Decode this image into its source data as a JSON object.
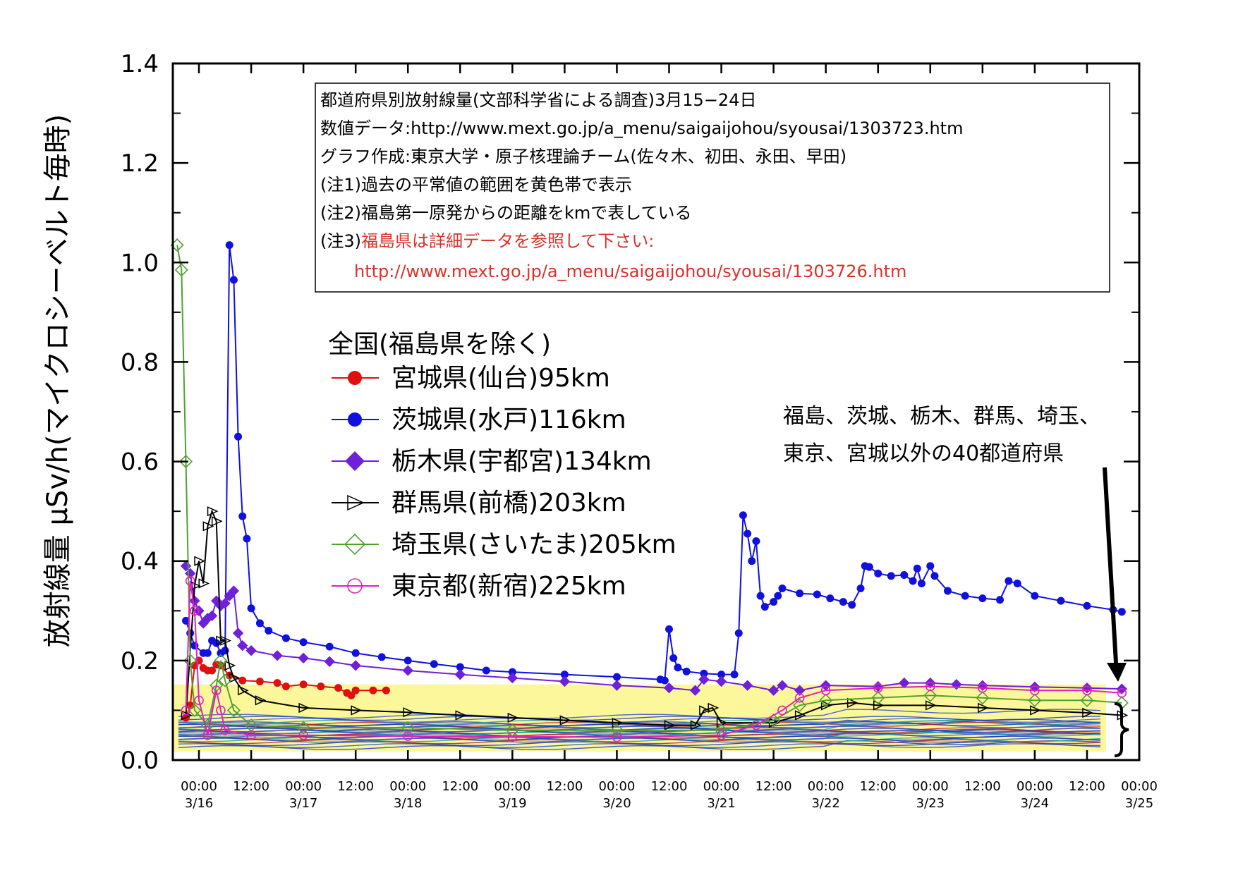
{
  "chart_data": {
    "type": "line",
    "ylabel": "放射線量 μSv/h(マイクロシーベルト毎時)",
    "ylim": [
      0,
      1.4
    ],
    "yticks": [
      "0.0",
      "0.2",
      "0.4",
      "0.6",
      "0.8",
      "1.0",
      "1.2",
      "1.4"
    ],
    "xlim": [
      "2011-03-15T18:00",
      "2011-03-25T00:00"
    ],
    "xticks": [
      {
        "t": "2011-03-16T00:00",
        "time": "00:00",
        "date": "3/16"
      },
      {
        "t": "2011-03-16T12:00",
        "time": "12:00",
        "date": ""
      },
      {
        "t": "2011-03-17T00:00",
        "time": "00:00",
        "date": "3/17"
      },
      {
        "t": "2011-03-17T12:00",
        "time": "12:00",
        "date": ""
      },
      {
        "t": "2011-03-18T00:00",
        "time": "00:00",
        "date": "3/18"
      },
      {
        "t": "2011-03-18T12:00",
        "time": "12:00",
        "date": ""
      },
      {
        "t": "2011-03-19T00:00",
        "time": "00:00",
        "date": "3/19"
      },
      {
        "t": "2011-03-19T12:00",
        "time": "12:00",
        "date": ""
      },
      {
        "t": "2011-03-20T00:00",
        "time": "00:00",
        "date": "3/20"
      },
      {
        "t": "2011-03-20T12:00",
        "time": "12:00",
        "date": ""
      },
      {
        "t": "2011-03-21T00:00",
        "time": "00:00",
        "date": "3/21"
      },
      {
        "t": "2011-03-21T12:00",
        "time": "12:00",
        "date": ""
      },
      {
        "t": "2011-03-22T00:00",
        "time": "00:00",
        "date": "3/22"
      },
      {
        "t": "2011-03-22T12:00",
        "time": "12:00",
        "date": ""
      },
      {
        "t": "2011-03-23T00:00",
        "time": "00:00",
        "date": "3/23"
      },
      {
        "t": "2011-03-23T12:00",
        "time": "12:00",
        "date": ""
      },
      {
        "t": "2011-03-24T00:00",
        "time": "00:00",
        "date": "3/24"
      },
      {
        "t": "2011-03-24T12:00",
        "time": "12:00",
        "date": ""
      },
      {
        "t": "2011-03-25T00:00",
        "time": "00:00",
        "date": "3/25"
      }
    ],
    "normal_band": {
      "ymin": 0.017,
      "ymax": 0.152,
      "color": "#fbf79a"
    },
    "info_box": {
      "lines": [
        "都道府県別放射線量(文部科学省による調査)3月15−24日",
        "数値データ:http://www.mext.go.jp/a_menu/saigaijohou/syousai/1303723.htm",
        "グラフ作成:東京大学・原子核理論チーム(佐々木、初田、永田、早田)",
        "(注1)過去の平常値の範囲を黄色帯で表示",
        "(注2)福島第一原発からの距離をkmで表している"
      ],
      "note3_prefix": "(注3)",
      "note3_red": "福島県は詳細データを参照して下さい:",
      "note3_url": "http://www.mext.go.jp/a_menu/saigaijohou/syousai/1303726.htm"
    },
    "legend_title": "全国(福島県を除く)",
    "annotation": [
      "福島、茨城、栃木、群馬、埼玉、",
      "東京、宮城以外の40都道府県"
    ],
    "series": [
      {
        "name": "宮城県(仙台)95km",
        "color": "#e01010",
        "marker": "circle",
        "points": [
          [
            "03-15T21:00",
            0.085
          ],
          [
            "03-15T22:00",
            0.11
          ],
          [
            "03-15T23:00",
            0.19
          ],
          [
            "03-16T00:00",
            0.2
          ],
          [
            "03-16T01:00",
            0.185
          ],
          [
            "03-16T02:00",
            0.18
          ],
          [
            "03-16T03:00",
            0.18
          ],
          [
            "03-16T04:00",
            0.192
          ],
          [
            "03-16T05:00",
            0.19
          ],
          [
            "03-16T07:00",
            0.17
          ],
          [
            "03-16T10:00",
            0.16
          ],
          [
            "03-16T14:00",
            0.158
          ],
          [
            "03-16T18:00",
            0.155
          ],
          [
            "03-16T20:00",
            0.148
          ],
          [
            "03-17T00:00",
            0.152
          ],
          [
            "03-17T04:00",
            0.148
          ],
          [
            "03-17T08:00",
            0.145
          ],
          [
            "03-17T10:00",
            0.135
          ],
          [
            "03-17T11:00",
            0.13
          ],
          [
            "03-17T12:00",
            0.14
          ],
          [
            "03-17T16:00",
            0.14
          ],
          [
            "03-17T19:00",
            0.14
          ]
        ]
      },
      {
        "name": "茨城県(水戸)116km",
        "color": "#1010e0",
        "marker": "circle",
        "points": [
          [
            "03-15T21:00",
            0.28
          ],
          [
            "03-15T22:00",
            0.255
          ],
          [
            "03-15T23:00",
            0.23
          ],
          [
            "03-16T01:00",
            0.215
          ],
          [
            "03-16T02:00",
            0.215
          ],
          [
            "03-16T03:00",
            0.24
          ],
          [
            "03-16T04:00",
            0.235
          ],
          [
            "03-16T05:00",
            0.215
          ],
          [
            "03-16T06:00",
            0.22
          ],
          [
            "03-16T07:00",
            1.035
          ],
          [
            "03-16T08:00",
            0.965
          ],
          [
            "03-16T09:00",
            0.65
          ],
          [
            "03-16T10:00",
            0.49
          ],
          [
            "03-16T11:00",
            0.445
          ],
          [
            "03-16T12:00",
            0.305
          ],
          [
            "03-16T14:00",
            0.275
          ],
          [
            "03-16T16:00",
            0.26
          ],
          [
            "03-16T20:00",
            0.245
          ],
          [
            "03-17T00:00",
            0.237
          ],
          [
            "03-17T06:00",
            0.228
          ],
          [
            "03-17T12:00",
            0.215
          ],
          [
            "03-17T18:00",
            0.207
          ],
          [
            "03-18T00:00",
            0.2
          ],
          [
            "03-18T06:00",
            0.193
          ],
          [
            "03-18T12:00",
            0.187
          ],
          [
            "03-18T18:00",
            0.18
          ],
          [
            "03-19T00:00",
            0.177
          ],
          [
            "03-19T12:00",
            0.172
          ],
          [
            "03-20T00:00",
            0.167
          ],
          [
            "03-20T10:00",
            0.162
          ],
          [
            "03-20T11:00",
            0.16
          ],
          [
            "03-20T12:00",
            0.263
          ],
          [
            "03-20T13:00",
            0.205
          ],
          [
            "03-20T14:00",
            0.186
          ],
          [
            "03-20T16:00",
            0.178
          ],
          [
            "03-20T20:00",
            0.174
          ],
          [
            "03-21T00:00",
            0.172
          ],
          [
            "03-21T03:00",
            0.172
          ],
          [
            "03-21T04:00",
            0.255
          ],
          [
            "03-21T05:00",
            0.492
          ],
          [
            "03-21T06:00",
            0.455
          ],
          [
            "03-21T07:00",
            0.4
          ],
          [
            "03-21T08:00",
            0.44
          ],
          [
            "03-21T09:00",
            0.33
          ],
          [
            "03-21T10:00",
            0.308
          ],
          [
            "03-21T12:00",
            0.318
          ],
          [
            "03-21T13:00",
            0.33
          ],
          [
            "03-21T14:00",
            0.345
          ],
          [
            "03-21T18:00",
            0.335
          ],
          [
            "03-21T22:00",
            0.333
          ],
          [
            "03-22T01:00",
            0.325
          ],
          [
            "03-22T04:00",
            0.318
          ],
          [
            "03-22T06:00",
            0.312
          ],
          [
            "03-22T08:00",
            0.345
          ],
          [
            "03-22T09:00",
            0.39
          ],
          [
            "03-22T10:00",
            0.388
          ],
          [
            "03-22T12:00",
            0.375
          ],
          [
            "03-22T15:00",
            0.37
          ],
          [
            "03-22T18:00",
            0.372
          ],
          [
            "03-22T20:00",
            0.36
          ],
          [
            "03-22T21:00",
            0.385
          ],
          [
            "03-22T22:00",
            0.355
          ],
          [
            "03-23T00:00",
            0.39
          ],
          [
            "03-23T01:00",
            0.37
          ],
          [
            "03-23T04:00",
            0.34
          ],
          [
            "03-23T08:00",
            0.33
          ],
          [
            "03-23T12:00",
            0.325
          ],
          [
            "03-23T16:00",
            0.322
          ],
          [
            "03-23T18:00",
            0.36
          ],
          [
            "03-23T20:00",
            0.355
          ],
          [
            "03-24T00:00",
            0.33
          ],
          [
            "03-24T06:00",
            0.32
          ],
          [
            "03-24T12:00",
            0.31
          ],
          [
            "03-24T18:00",
            0.302
          ],
          [
            "03-24T20:00",
            0.298
          ]
        ]
      },
      {
        "name": "栃木県(宇都宮)134km",
        "color": "#7020d8",
        "marker": "diamond",
        "points": [
          [
            "03-15T21:00",
            0.39
          ],
          [
            "03-15T22:00",
            0.375
          ],
          [
            "03-15T23:00",
            0.32
          ],
          [
            "03-16T00:00",
            0.3
          ],
          [
            "03-16T01:00",
            0.275
          ],
          [
            "03-16T02:00",
            0.285
          ],
          [
            "03-16T03:00",
            0.29
          ],
          [
            "03-16T04:00",
            0.32
          ],
          [
            "03-16T05:00",
            0.31
          ],
          [
            "03-16T06:00",
            0.315
          ],
          [
            "03-16T07:00",
            0.33
          ],
          [
            "03-16T08:00",
            0.34
          ],
          [
            "03-16T09:00",
            0.255
          ],
          [
            "03-16T10:00",
            0.23
          ],
          [
            "03-16T12:00",
            0.22
          ],
          [
            "03-16T18:00",
            0.21
          ],
          [
            "03-17T00:00",
            0.205
          ],
          [
            "03-17T06:00",
            0.198
          ],
          [
            "03-17T12:00",
            0.19
          ],
          [
            "03-18T00:00",
            0.18
          ],
          [
            "03-18T12:00",
            0.172
          ],
          [
            "03-19T00:00",
            0.165
          ],
          [
            "03-19T12:00",
            0.158
          ],
          [
            "03-20T00:00",
            0.15
          ],
          [
            "03-20T12:00",
            0.145
          ],
          [
            "03-20T18:00",
            0.14
          ],
          [
            "03-20T20:00",
            0.162
          ],
          [
            "03-21T00:00",
            0.158
          ],
          [
            "03-21T06:00",
            0.15
          ],
          [
            "03-21T12:00",
            0.14
          ],
          [
            "03-21T14:00",
            0.15
          ],
          [
            "03-21T18:00",
            0.14
          ],
          [
            "03-22T00:00",
            0.15
          ],
          [
            "03-22T12:00",
            0.148
          ],
          [
            "03-22T18:00",
            0.155
          ],
          [
            "03-23T00:00",
            0.155
          ],
          [
            "03-23T06:00",
            0.152
          ],
          [
            "03-23T12:00",
            0.15
          ],
          [
            "03-24T00:00",
            0.147
          ],
          [
            "03-24T12:00",
            0.145
          ],
          [
            "03-24T20:00",
            0.143
          ]
        ]
      },
      {
        "name": "群馬県(前橋)203km",
        "color": "#000000",
        "marker": "triangle",
        "points": [
          [
            "03-15T21:00",
            0.09
          ],
          [
            "03-15T23:00",
            0.35
          ],
          [
            "03-16T00:00",
            0.4
          ],
          [
            "03-16T01:00",
            0.355
          ],
          [
            "03-16T02:00",
            0.47
          ],
          [
            "03-16T03:00",
            0.5
          ],
          [
            "03-16T04:00",
            0.48
          ],
          [
            "03-16T05:00",
            0.24
          ],
          [
            "03-16T06:00",
            0.24
          ],
          [
            "03-16T07:00",
            0.19
          ],
          [
            "03-16T08:00",
            0.165
          ],
          [
            "03-16T10:00",
            0.14
          ],
          [
            "03-16T14:00",
            0.12
          ],
          [
            "03-17T00:00",
            0.105
          ],
          [
            "03-17T12:00",
            0.1
          ],
          [
            "03-18T00:00",
            0.096
          ],
          [
            "03-18T12:00",
            0.09
          ],
          [
            "03-19T00:00",
            0.085
          ],
          [
            "03-19T12:00",
            0.08
          ],
          [
            "03-20T00:00",
            0.075
          ],
          [
            "03-20T12:00",
            0.07
          ],
          [
            "03-20T18:00",
            0.07
          ],
          [
            "03-20T20:00",
            0.1
          ],
          [
            "03-20T22:00",
            0.105
          ],
          [
            "03-21T00:00",
            0.075
          ],
          [
            "03-21T12:00",
            0.075
          ],
          [
            "03-21T18:00",
            0.09
          ],
          [
            "03-22T00:00",
            0.11
          ],
          [
            "03-22T06:00",
            0.115
          ],
          [
            "03-22T12:00",
            0.11
          ],
          [
            "03-23T00:00",
            0.11
          ],
          [
            "03-23T12:00",
            0.105
          ],
          [
            "03-24T00:00",
            0.1
          ],
          [
            "03-24T12:00",
            0.095
          ],
          [
            "03-24T20:00",
            0.09
          ]
        ]
      },
      {
        "name": "埼玉県(さいたま)205km",
        "color": "#50a030",
        "marker": "diamond-open",
        "points": [
          [
            "03-15T19:00",
            1.035
          ],
          [
            "03-15T20:00",
            0.985
          ],
          [
            "03-15T21:00",
            0.6
          ],
          [
            "03-15T22:00",
            0.2
          ],
          [
            "03-15T23:00",
            0.1
          ],
          [
            "03-16T02:00",
            0.07
          ],
          [
            "03-16T04:00",
            0.15
          ],
          [
            "03-16T05:00",
            0.2
          ],
          [
            "03-16T06:00",
            0.16
          ],
          [
            "03-16T08:00",
            0.1
          ],
          [
            "03-16T12:00",
            0.07
          ],
          [
            "03-17T00:00",
            0.065
          ],
          [
            "03-18T00:00",
            0.065
          ],
          [
            "03-19T00:00",
            0.06
          ],
          [
            "03-20T00:00",
            0.06
          ],
          [
            "03-21T00:00",
            0.06
          ],
          [
            "03-21T12:00",
            0.08
          ],
          [
            "03-21T18:00",
            0.11
          ],
          [
            "03-22T00:00",
            0.12
          ],
          [
            "03-22T12:00",
            0.125
          ],
          [
            "03-23T00:00",
            0.13
          ],
          [
            "03-23T12:00",
            0.125
          ],
          [
            "03-24T00:00",
            0.12
          ],
          [
            "03-24T12:00",
            0.12
          ],
          [
            "03-24T20:00",
            0.115
          ]
        ]
      },
      {
        "name": "東京都(新宿)225km",
        "color": "#e020c0",
        "marker": "circle-open",
        "points": [
          [
            "03-15T21:00",
            0.1
          ],
          [
            "03-15T22:00",
            0.36
          ],
          [
            "03-15T23:00",
            0.3
          ],
          [
            "03-16T00:00",
            0.12
          ],
          [
            "03-16T02:00",
            0.05
          ],
          [
            "03-16T04:00",
            0.14
          ],
          [
            "03-16T05:00",
            0.1
          ],
          [
            "03-16T06:00",
            0.06
          ],
          [
            "03-16T12:00",
            0.05
          ],
          [
            "03-17T00:00",
            0.05
          ],
          [
            "03-18T00:00",
            0.048
          ],
          [
            "03-19T00:00",
            0.047
          ],
          [
            "03-20T00:00",
            0.046
          ],
          [
            "03-21T00:00",
            0.05
          ],
          [
            "03-21T08:00",
            0.07
          ],
          [
            "03-21T14:00",
            0.1
          ],
          [
            "03-21T18:00",
            0.125
          ],
          [
            "03-22T00:00",
            0.14
          ],
          [
            "03-22T12:00",
            0.145
          ],
          [
            "03-23T00:00",
            0.148
          ],
          [
            "03-23T12:00",
            0.145
          ],
          [
            "03-24T00:00",
            0.14
          ],
          [
            "03-24T12:00",
            0.14
          ],
          [
            "03-24T20:00",
            0.135
          ]
        ]
      }
    ]
  }
}
